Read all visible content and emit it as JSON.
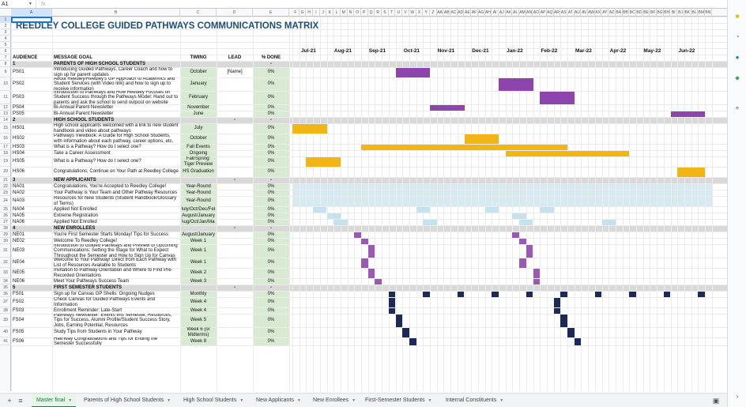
{
  "formula_bar": {
    "cell_ref": "A1",
    "fx": "fx",
    "value": ""
  },
  "columns": [
    "A",
    "B",
    "C",
    "D",
    "E",
    "F",
    "G",
    "H",
    "I",
    "J",
    "K",
    "L",
    "M",
    "N",
    "O",
    "P",
    "Q",
    "R",
    "S",
    "T",
    "U",
    "V",
    "W",
    "X",
    "Y",
    "Z",
    "AA",
    "AB",
    "AC",
    "AD",
    "AE",
    "AF",
    "AG",
    "AH",
    "AI",
    "AJ",
    "AK",
    "AL",
    "AM",
    "AN",
    "AO",
    "AP",
    "AQ",
    "AR",
    "AS",
    "AT",
    "AU",
    "AV",
    "AW",
    "AX",
    "AY",
    "AZ",
    "BA",
    "BB",
    "BC",
    "BD",
    "BE",
    "BF",
    "BG",
    "BH",
    "BI",
    "BJ",
    "BK",
    "BL",
    "BM",
    "BN"
  ],
  "title": "REEDLEY COLLEGE GUIDED PATHWAYS COMMUNICATIONS MATRIX",
  "months": [
    "Jul-21",
    "Aug-21",
    "Sep-21",
    "Oct-21",
    "Nov-21",
    "Dec-21",
    "Jan-22",
    "Feb-22",
    "Mar-22",
    "Apr-22",
    "May-22",
    "Jun-22"
  ],
  "headers": {
    "audience": "AUDIENCE",
    "goal": "MESSAGE GOAL",
    "timing": "TIMING",
    "lead": "LEAD",
    "done": "% DONE"
  },
  "rows": [
    {
      "n": "1",
      "a": "",
      "b": "",
      "c": "",
      "d": "",
      "e": ""
    },
    {
      "n": "2",
      "a": "",
      "b": "",
      "c": "",
      "d": "",
      "e": ""
    },
    {
      "n": "3",
      "a": "",
      "b": "",
      "c": "",
      "d": "",
      "e": ""
    },
    {
      "n": "4",
      "a": "",
      "b": "",
      "c": "",
      "d": "",
      "e": ""
    },
    {
      "n": "5",
      "a": "",
      "b": "",
      "c": "",
      "d": "",
      "e": ""
    },
    {
      "n": "6",
      "a": "",
      "b": "",
      "c": "",
      "d": "",
      "e": ""
    },
    {
      "n": "7",
      "a": "",
      "b": "",
      "c": "",
      "d": "",
      "e": ""
    },
    {
      "n": "8",
      "t": "sec",
      "a": "1",
      "b": "PARENTS OF HIGH SCHOOL STUDENTS",
      "c": "",
      "d": "",
      "e": "-"
    },
    {
      "n": "9",
      "a": "PS01",
      "b": "Introducing Guided Pathways, Career Coach and how to sign up for parent updates",
      "c": "October",
      "d": "[Name]",
      "e": "0%"
    },
    {
      "n": "10",
      "a": "PS02",
      "b": "About Reedley/Reedley's GP Approach to Academics and Student Services (with Video link) and how to sign up to receive information",
      "c": "January",
      "d": "",
      "e": "0%"
    },
    {
      "n": "11",
      "a": "PS03",
      "b": "Introduction to Pathways and How Reedley Focuses on Student Success through the Pathways Model: Hand out to parents and ask the school to send outpost on website",
      "c": "February",
      "d": "",
      "e": "0%"
    },
    {
      "n": "12",
      "a": "PS04",
      "b": "Bi-Annual Parent Newsletter",
      "c": "November",
      "d": "",
      "e": "0%"
    },
    {
      "n": "13",
      "a": "PS05",
      "b": "Bi-Annual Parent Newsletter",
      "c": "June",
      "d": "",
      "e": "0%"
    },
    {
      "n": "14",
      "t": "sec",
      "a": "2",
      "b": "HIGH SCHOOL STUDENTS",
      "c": "",
      "d": "-",
      "e": "-"
    },
    {
      "n": "15",
      "a": "HS01",
      "b": "High school applicants welcomed with a link to new student handbook and video about pathways",
      "c": "July",
      "d": "",
      "e": "0%"
    },
    {
      "n": "16",
      "a": "HS02",
      "b": "Pathways Viewbook: A Guide for High School Students, with information about each pathway, career options, etc.",
      "c": "October",
      "d": "",
      "e": "0%"
    },
    {
      "n": "17",
      "a": "HS03",
      "b": "What is a Pathway? How do I select one?",
      "c": "Fall Events",
      "d": "",
      "e": "0%"
    },
    {
      "n": "18",
      "a": "HS04",
      "b": "Take a Career Assessment",
      "c": "Ongoing",
      "d": "",
      "e": "0%"
    },
    {
      "n": "19",
      "a": "HS05",
      "b": "What is a Pathway? How do I select one?",
      "c": "Fall/Spring: Tiger Preview",
      "d": "",
      "e": "0%"
    },
    {
      "n": "20",
      "a": "HS06",
      "b": "Congratulations; Continue on Your Path at Reedley College",
      "c": "HS Graduation",
      "d": "",
      "e": "0%"
    },
    {
      "n": "21",
      "t": "sec",
      "a": "3",
      "b": "NEW APPLICANTS",
      "c": "",
      "d": "-",
      "e": "-"
    },
    {
      "n": "22",
      "a": "NA01",
      "b": "Congratulations, You're Accepted to Reedley College!",
      "c": "Year-Round",
      "d": "",
      "e": "0%"
    },
    {
      "n": "23",
      "a": "NA02",
      "b": "Your Pathway is Your Team and Other Pathway Resources",
      "c": "Year-Round",
      "d": "",
      "e": "0%"
    },
    {
      "n": "24",
      "a": "NA03",
      "b": "Resources for New Students (Student Handbook/Glossary of Terms)",
      "c": "Year-Round",
      "d": "",
      "e": "0%"
    },
    {
      "n": "25",
      "a": "NA04",
      "b": "Applied Not Enrolled",
      "c": "July/Oct/Dec/Feb",
      "d": "",
      "e": "0%"
    },
    {
      "n": "26",
      "a": "NA05",
      "b": "Extreme Registration",
      "c": "August/January",
      "d": "",
      "e": "0%"
    },
    {
      "n": "27",
      "a": "NA06",
      "b": "Applied Not Enrolled",
      "c": "Aug/Oct/Jan/Mar",
      "d": "",
      "e": "0%"
    },
    {
      "n": "28",
      "t": "sec",
      "a": "4",
      "b": "NEW ENROLLEES",
      "c": "",
      "d": "-",
      "e": "-"
    },
    {
      "n": "29",
      "a": "NE01",
      "b": "You're First Semester Starts Monday! Tips for Success",
      "c": "August/January",
      "d": "",
      "e": "0%"
    },
    {
      "n": "30",
      "a": "NE02",
      "b": "Welcome To Reedley College!",
      "c": "Week 1",
      "d": "",
      "e": "0%"
    },
    {
      "n": "31",
      "a": "NE03",
      "b": "Introduction to Guided Pathways and Preview of Upcoming Communications: Setting the Stage for What to Expect Throughout the Semester and How to Sign Up for Canvas",
      "c": "Week 1",
      "d": "",
      "e": "0%"
    },
    {
      "n": "32",
      "a": "NE04",
      "b": "Welcome to Your Pathway! Direct from Each Pathway with List of Resources Available to Students",
      "c": "Week 1",
      "d": "",
      "e": "0%"
    },
    {
      "n": "33",
      "a": "NE05",
      "b": "Invitation to Pathway Orientation and Where to Find Pre-Recorded Orientations",
      "c": "Week 2",
      "d": "",
      "e": "0%"
    },
    {
      "n": "34",
      "a": "NE06",
      "b": "Meet Your Pathways Success Team",
      "c": "Week 3",
      "d": "",
      "e": "0%"
    },
    {
      "n": "35",
      "t": "sec",
      "a": "5",
      "b": "FIRST SEMESTER STUDENTS",
      "c": "",
      "d": "-",
      "e": "-"
    },
    {
      "n": "36",
      "a": "FS01",
      "b": "Sign up for Canvas GP Shells: Ongoing Nudges",
      "c": "Monthly",
      "d": "",
      "e": "0%"
    },
    {
      "n": "37",
      "a": "FS02",
      "b": "Check Canvas for Guided Pathways Events and Information",
      "c": "Week 4",
      "d": "",
      "e": "0%"
    },
    {
      "n": "38",
      "a": "FS03",
      "b": "Enrollment Reminder: Late-Start",
      "c": "Week 4",
      "d": "",
      "e": "0%"
    },
    {
      "n": "39",
      "a": "FS04",
      "b": "Pathways Newsletter: Events this Semester, Resources, Tips for Success, Alumni Profile/Student Success Story, Jobs, Earning Potential, Resources",
      "c": "Week 5",
      "d": "",
      "e": "0%"
    },
    {
      "n": "40",
      "a": "FS05",
      "b": "Study Tips from Students in Your Pathway",
      "c": "Week 6 (or Midterms)",
      "d": "",
      "e": "0%"
    },
    {
      "n": "41",
      "a": "FS06",
      "b": "Half/Way Congratulations and Tips for Ending the Semester Successfully",
      "c": "Week 8",
      "d": "",
      "e": "0%"
    }
  ],
  "colors": {
    "purple": "#8e44ad",
    "purple_dark": "#9b59b6",
    "purple_mid": "#7e3f98",
    "gold": "#f1b515",
    "light_blue": "#d6eaf2",
    "mid_blue": "#c5e3ee",
    "navy": "#1c2a5a",
    "section_gray": "#d9d9d9",
    "green_cell": "#d9ead3",
    "title_blue": "#1f4e79",
    "tab_green": "#188038"
  },
  "sheet_tabs": [
    "Master final",
    "Parents of High School Students",
    "High School Students",
    "New Applicants",
    "New Enrollees",
    "First-Semester Students",
    "Internal Constituents"
  ],
  "active_tab": 0,
  "side_icons": [
    "sheets-icon",
    "calendar-icon",
    "contacts-icon",
    "maps-icon",
    "add-icon",
    "expand-icon"
  ]
}
